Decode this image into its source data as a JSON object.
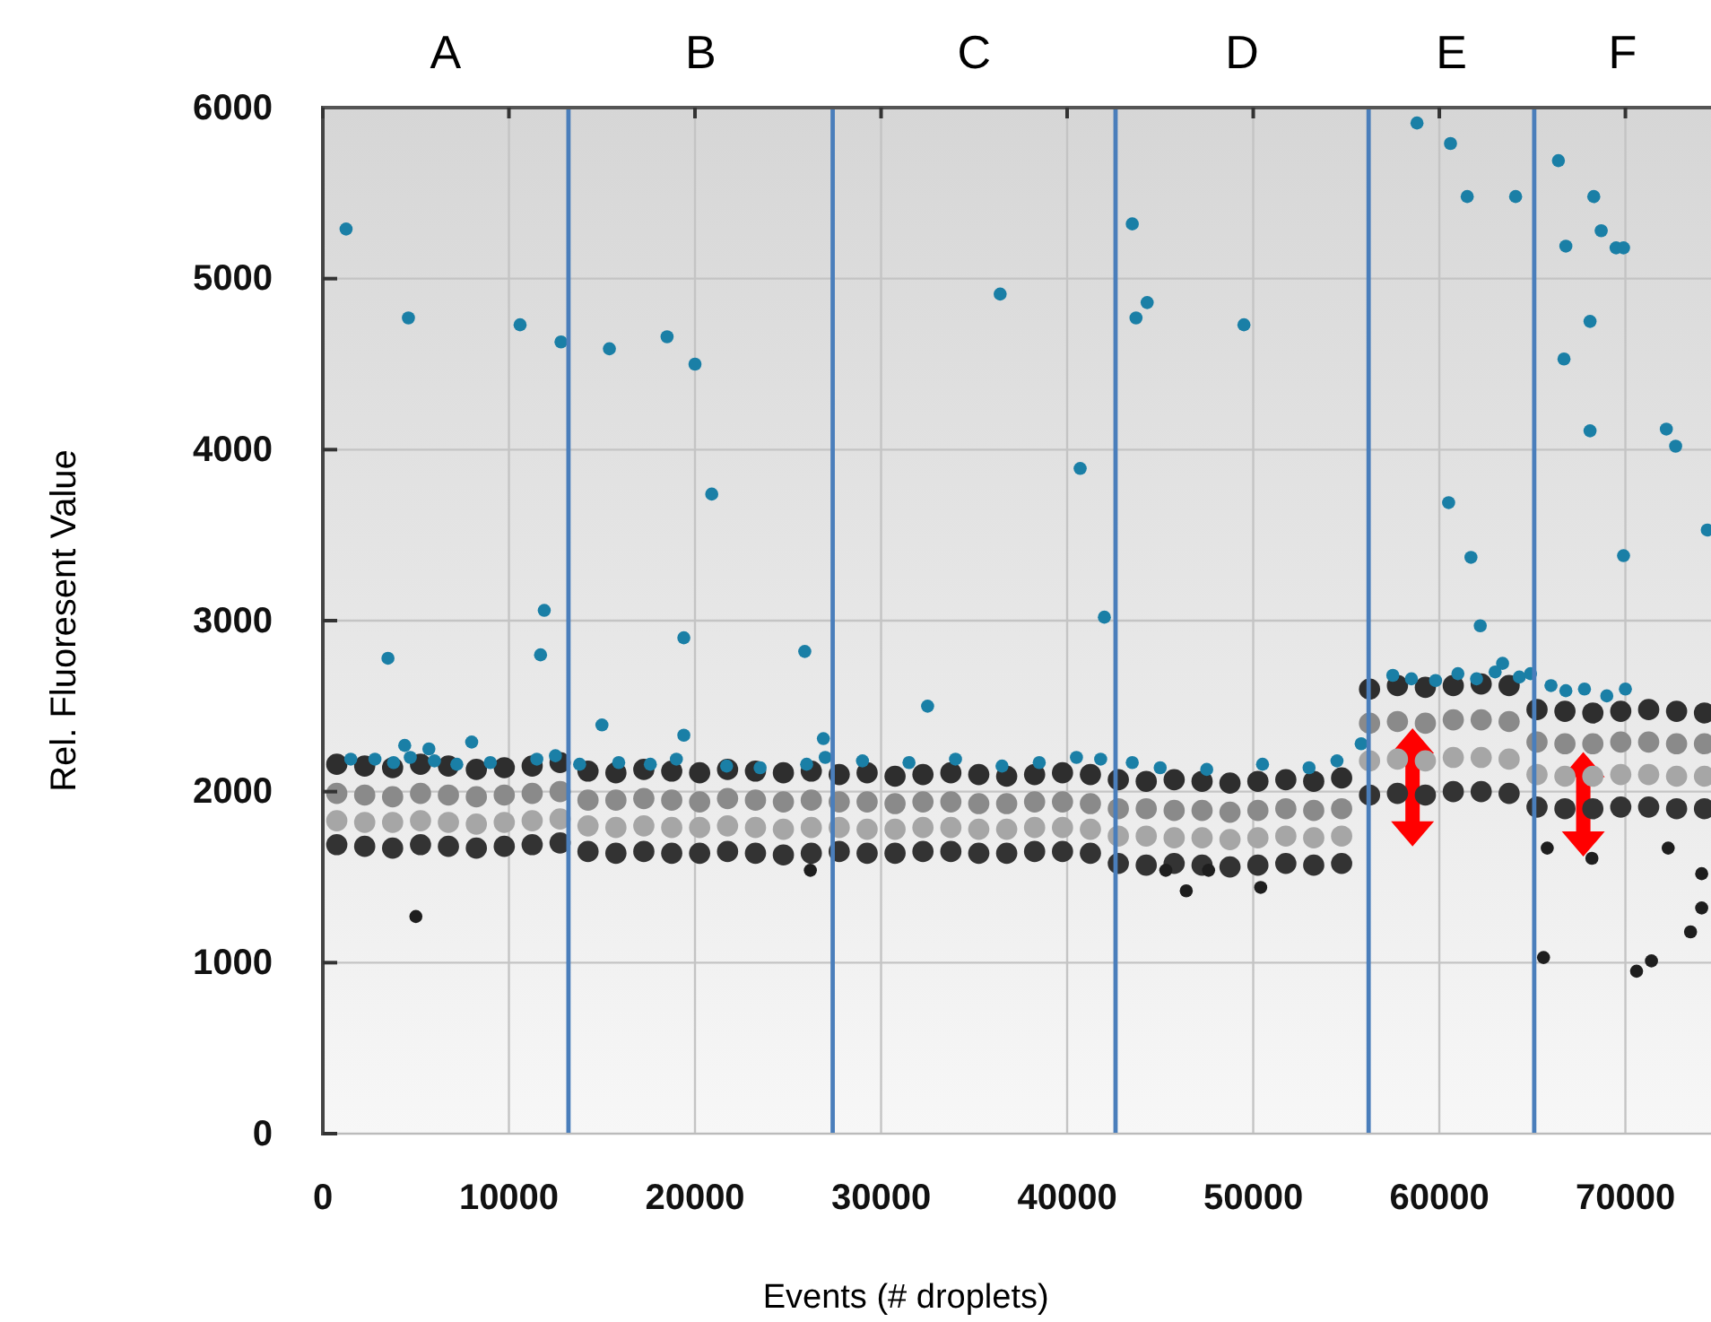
{
  "chart_data": {
    "type": "scatter",
    "xlabel": "Events (# droplets)",
    "ylabel": "Rel. Fluoresent Value",
    "xlim": [
      0,
      74600
    ],
    "xticks": [
      0,
      10000,
      20000,
      30000,
      40000,
      50000,
      60000,
      70000
    ],
    "ylim": [
      0,
      6000
    ],
    "yticks": [
      0,
      1000,
      2000,
      3000,
      4000,
      5000,
      6000
    ],
    "annotations": [
      "A",
      "B",
      "C",
      "D",
      "E",
      "F"
    ],
    "grid": true,
    "marker": "circle",
    "x": [
      750,
      2250,
      3750,
      5250,
      6750,
      8250,
      9750,
      11250,
      12750,
      14250,
      15750,
      17250,
      18750,
      20250,
      21750,
      23250,
      24750,
      26250,
      27750,
      29250,
      30750,
      32250,
      33750,
      35250,
      36750,
      38250,
      39750,
      41250,
      42750,
      44250,
      45750,
      47250,
      48750,
      50250,
      51750,
      53250,
      54750,
      56250,
      57750,
      59250,
      60750,
      62250,
      63750,
      65250,
      66750,
      68250,
      69750,
      71250,
      72750,
      74250
    ],
    "series": [
      {
        "color": "#2e2e2e",
        "values": [
          2160,
          2150,
          2140,
          2160,
          2150,
          2130,
          2140,
          2150,
          2170,
          2120,
          2110,
          2130,
          2120,
          2110,
          2130,
          2120,
          2110,
          2120,
          2100,
          2110,
          2090,
          2100,
          2110,
          2100,
          2090,
          2100,
          2110,
          2100,
          2070,
          2060,
          2070,
          2060,
          2050,
          2060,
          2070,
          2060,
          2080,
          2600,
          2620,
          2610,
          2620,
          2630,
          2620,
          2480,
          2470,
          2460,
          2470,
          2480,
          2470,
          2460
        ]
      },
      {
        "color": "#8a8a8a",
        "values": [
          1990,
          1980,
          1970,
          1990,
          1980,
          1970,
          1980,
          1990,
          2000,
          1950,
          1950,
          1960,
          1950,
          1940,
          1960,
          1950,
          1940,
          1950,
          1940,
          1940,
          1930,
          1940,
          1940,
          1930,
          1930,
          1940,
          1940,
          1930,
          1900,
          1900,
          1890,
          1890,
          1880,
          1890,
          1900,
          1890,
          1900,
          2400,
          2410,
          2400,
          2420,
          2420,
          2410,
          2290,
          2280,
          2280,
          2290,
          2290,
          2280,
          2280
        ]
      },
      {
        "color": "#a6a6a6",
        "values": [
          1830,
          1820,
          1820,
          1830,
          1820,
          1810,
          1820,
          1830,
          1840,
          1800,
          1790,
          1800,
          1790,
          1790,
          1800,
          1790,
          1780,
          1790,
          1790,
          1780,
          1780,
          1790,
          1790,
          1780,
          1780,
          1790,
          1790,
          1780,
          1740,
          1740,
          1730,
          1730,
          1720,
          1730,
          1740,
          1730,
          1740,
          2180,
          2190,
          2180,
          2200,
          2200,
          2190,
          2100,
          2090,
          2090,
          2100,
          2100,
          2090,
          2090
        ]
      },
      {
        "color": "#333333",
        "values": [
          1690,
          1680,
          1670,
          1690,
          1680,
          1670,
          1680,
          1690,
          1700,
          1650,
          1640,
          1650,
          1640,
          1640,
          1650,
          1640,
          1630,
          1640,
          1650,
          1640,
          1640,
          1650,
          1650,
          1640,
          1640,
          1650,
          1650,
          1640,
          1580,
          1570,
          1580,
          1570,
          1560,
          1570,
          1580,
          1570,
          1580,
          1980,
          1990,
          1980,
          2000,
          2000,
          1990,
          1910,
          1900,
          1900,
          1910,
          1910,
          1900,
          1900
        ]
      },
      {
        "color": "#1e1e1e",
        "x": [
          5000,
          26200,
          45300,
          46400,
          47600,
          50400,
          65800,
          68200,
          72300,
          74100,
          74100,
          73500,
          70600,
          71400,
          65600
        ],
        "values": [
          1270,
          1540,
          1540,
          1420,
          1540,
          1440,
          1670,
          1610,
          1670,
          1520,
          1320,
          1180,
          950,
          1010,
          1030
        ]
      },
      {
        "color": "#1a7fa6",
        "x": [
          1250,
          4600,
          3500,
          10600,
          12800,
          15400,
          18500,
          20000,
          20900,
          11900,
          11700,
          19400,
          25900,
          15000,
          19400,
          8000,
          4400,
          5700,
          26900,
          36400,
          43500,
          43700,
          44300,
          49500,
          40700,
          42000,
          32500,
          58800,
          60600,
          61500,
          64100,
          66400,
          68300,
          68700,
          66800,
          69500,
          69900,
          68100,
          66700,
          68100,
          72200,
          72700,
          60500,
          61700,
          69900,
          74400,
          62200,
          63400,
          1500,
          2800,
          3800,
          4700,
          6000,
          7200,
          9000,
          11500,
          12500,
          13800,
          15900,
          17600,
          19000,
          21700,
          23500,
          26000,
          27000,
          29000,
          31500,
          34000,
          36500,
          38500,
          40500,
          41800,
          43500,
          45000,
          47500,
          50500,
          53000,
          54500,
          55800,
          57500,
          58500,
          59800,
          61000,
          62000,
          63000,
          64300,
          64900,
          66000,
          66800,
          67800,
          69000,
          70000
        ],
        "values": [
          5290,
          4770,
          2780,
          4730,
          4630,
          4590,
          4660,
          4500,
          3740,
          3060,
          2800,
          2900,
          2820,
          2390,
          2330,
          2290,
          2270,
          2250,
          2310,
          4910,
          5320,
          4770,
          4860,
          4730,
          3890,
          3020,
          2500,
          5910,
          5790,
          5480,
          5480,
          5690,
          5480,
          5280,
          5190,
          5180,
          5180,
          4750,
          4530,
          4110,
          4120,
          4020,
          3690,
          3370,
          3380,
          3530,
          2970,
          2750,
          2190,
          2190,
          2170,
          2200,
          2180,
          2160,
          2170,
          2190,
          2210,
          2160,
          2170,
          2160,
          2190,
          2150,
          2140,
          2160,
          2200,
          2180,
          2170,
          2190,
          2150,
          2170,
          2200,
          2190,
          2170,
          2140,
          2130,
          2160,
          2140,
          2180,
          2280,
          2680,
          2660,
          2650,
          2690,
          2660,
          2700,
          2670,
          2690,
          2620,
          2590,
          2600,
          2560,
          2600
        ]
      }
    ],
    "ref_lines": [
      {
        "axis": "x",
        "value": 13200,
        "color": "#4a7ebb"
      },
      {
        "axis": "x",
        "value": 27400,
        "color": "#4a7ebb"
      },
      {
        "axis": "x",
        "value": 42600,
        "color": "#4a7ebb"
      },
      {
        "axis": "x",
        "value": 56200,
        "color": "#4a7ebb"
      },
      {
        "axis": "x",
        "value": 65100,
        "color": "#4a7ebb"
      }
    ]
  }
}
